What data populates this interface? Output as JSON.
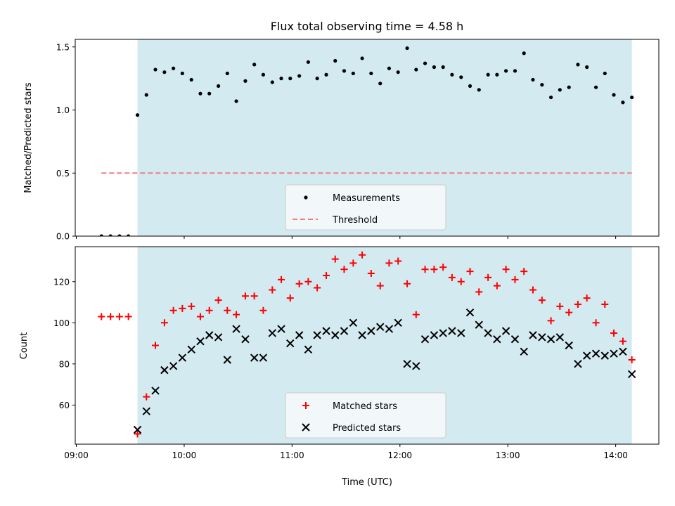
{
  "chart_data": {
    "title": "Flux total observing time = 4.58 h",
    "xlabel": "Time (UTC)",
    "x_ticks": [
      "09:00",
      "10:00",
      "11:00",
      "12:00",
      "13:00",
      "14:00"
    ],
    "x_tick_hours": [
      9,
      10,
      11,
      12,
      13,
      14
    ],
    "xlim": [
      8.99,
      14.4
    ],
    "shaded_interval": [
      9.567,
      14.15
    ],
    "shade_color": "#d3eaf0",
    "panels": [
      {
        "type": "scatter",
        "ylabel": "Matched/Predicted stars",
        "ylim": [
          0,
          1.56
        ],
        "y_ticks": [
          0.0,
          0.5,
          1.0,
          1.5
        ],
        "y_tick_labels": [
          "0.0",
          "0.5",
          "1.0",
          "1.5"
        ],
        "legend_position": "lower-center",
        "series": [
          {
            "name": "Measurements",
            "marker": "dot",
            "color": "#000000",
            "x": [
              9.233,
              9.317,
              9.4,
              9.483,
              9.567,
              9.65,
              9.733,
              9.817,
              9.9,
              9.983,
              10.067,
              10.15,
              10.233,
              10.317,
              10.4,
              10.483,
              10.567,
              10.65,
              10.733,
              10.817,
              10.9,
              10.983,
              11.067,
              11.15,
              11.233,
              11.317,
              11.4,
              11.483,
              11.567,
              11.65,
              11.733,
              11.817,
              11.9,
              11.983,
              12.067,
              12.15,
              12.233,
              12.317,
              12.4,
              12.483,
              12.567,
              12.65,
              12.733,
              12.817,
              12.9,
              12.983,
              13.067,
              13.15,
              13.233,
              13.317,
              13.4,
              13.483,
              13.567,
              13.65,
              13.733,
              13.817,
              13.9,
              13.983,
              14.067,
              14.15
            ],
            "values": [
              0,
              0,
              0,
              0,
              0.96,
              1.12,
              1.32,
              1.3,
              1.33,
              1.29,
              1.24,
              1.13,
              1.13,
              1.19,
              1.29,
              1.07,
              1.23,
              1.36,
              1.28,
              1.22,
              1.25,
              1.25,
              1.27,
              1.38,
              1.25,
              1.28,
              1.39,
              1.31,
              1.29,
              1.41,
              1.29,
              1.21,
              1.33,
              1.3,
              1.49,
              1.32,
              1.37,
              1.34,
              1.34,
              1.28,
              1.26,
              1.19,
              1.16,
              1.28,
              1.28,
              1.31,
              1.31,
              1.45,
              1.24,
              1.2,
              1.1,
              1.16,
              1.18,
              1.36,
              1.34,
              1.18,
              1.29,
              1.12,
              1.06,
              1.1
            ]
          },
          {
            "name": "Threshold",
            "marker": "dashed-line",
            "color": "#f08080",
            "x": [
              9.233,
              14.15
            ],
            "values": [
              0.5,
              0.5
            ]
          }
        ]
      },
      {
        "type": "scatter",
        "ylabel": "Count",
        "ylim": [
          41,
          137
        ],
        "y_ticks": [
          60,
          80,
          100,
          120
        ],
        "y_tick_labels": [
          "60",
          "80",
          "100",
          "120"
        ],
        "legend_position": "lower-center",
        "series": [
          {
            "name": "Matched stars",
            "marker": "plus",
            "color": "#ff0000",
            "x": [
              9.233,
              9.317,
              9.4,
              9.483,
              9.567,
              9.65,
              9.733,
              9.817,
              9.9,
              9.983,
              10.067,
              10.15,
              10.233,
              10.317,
              10.4,
              10.483,
              10.567,
              10.65,
              10.733,
              10.817,
              10.9,
              10.983,
              11.067,
              11.15,
              11.233,
              11.317,
              11.4,
              11.483,
              11.567,
              11.65,
              11.733,
              11.817,
              11.9,
              11.983,
              12.067,
              12.15,
              12.233,
              12.317,
              12.4,
              12.483,
              12.567,
              12.65,
              12.733,
              12.817,
              12.9,
              12.983,
              13.067,
              13.15,
              13.233,
              13.317,
              13.4,
              13.483,
              13.567,
              13.65,
              13.733,
              13.817,
              13.9,
              13.983,
              14.067,
              14.15
            ],
            "values": [
              103,
              103,
              103,
              103,
              46,
              64,
              89,
              100,
              106,
              107,
              108,
              103,
              106,
              111,
              106,
              104,
              113,
              113,
              106,
              116,
              121,
              112,
              119,
              120,
              117,
              123,
              131,
              126,
              129,
              133,
              124,
              118,
              129,
              130,
              119,
              104,
              126,
              126,
              127,
              122,
              120,
              125,
              115,
              122,
              118,
              126,
              121,
              125,
              116,
              111,
              101,
              108,
              105,
              109,
              112,
              100,
              109,
              95,
              91,
              82
            ]
          },
          {
            "name": "Predicted stars",
            "marker": "x",
            "color": "#000000",
            "x": [
              9.567,
              9.65,
              9.733,
              9.817,
              9.9,
              9.983,
              10.067,
              10.15,
              10.233,
              10.317,
              10.4,
              10.483,
              10.567,
              10.65,
              10.733,
              10.817,
              10.9,
              10.983,
              11.067,
              11.15,
              11.233,
              11.317,
              11.4,
              11.483,
              11.567,
              11.65,
              11.733,
              11.817,
              11.9,
              11.983,
              12.067,
              12.15,
              12.233,
              12.317,
              12.4,
              12.483,
              12.567,
              12.65,
              12.733,
              12.817,
              12.9,
              12.983,
              13.067,
              13.15,
              13.233,
              13.317,
              13.4,
              13.483,
              13.567,
              13.65,
              13.733,
              13.817,
              13.9,
              13.983,
              14.067,
              14.15
            ],
            "values": [
              48,
              57,
              67,
              77,
              79,
              83,
              87,
              91,
              94,
              93,
              82,
              97,
              92,
              83,
              83,
              95,
              97,
              90,
              94,
              87,
              94,
              96,
              94,
              96,
              100,
              94,
              96,
              98,
              97,
              100,
              80,
              79,
              92,
              94,
              95,
              96,
              95,
              105,
              99,
              95,
              92,
              96,
              92,
              86,
              94,
              93,
              92,
              93,
              89,
              80,
              84,
              85,
              84,
              85,
              86,
              75
            ]
          }
        ]
      }
    ]
  }
}
